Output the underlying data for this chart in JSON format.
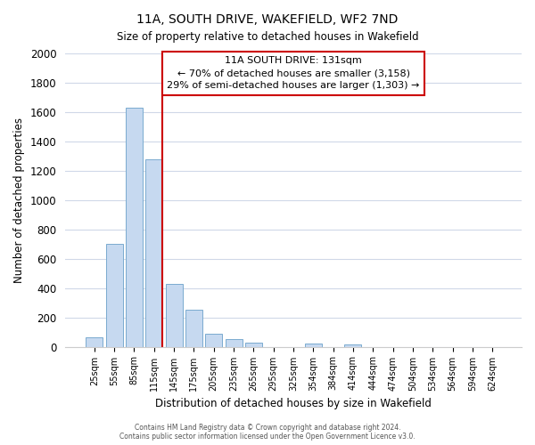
{
  "title": "11A, SOUTH DRIVE, WAKEFIELD, WF2 7ND",
  "subtitle": "Size of property relative to detached houses in Wakefield",
  "xlabel": "Distribution of detached houses by size in Wakefield",
  "ylabel": "Number of detached properties",
  "bar_labels": [
    "25sqm",
    "55sqm",
    "85sqm",
    "115sqm",
    "145sqm",
    "175sqm",
    "205sqm",
    "235sqm",
    "265sqm",
    "295sqm",
    "325sqm",
    "354sqm",
    "384sqm",
    "414sqm",
    "444sqm",
    "474sqm",
    "504sqm",
    "534sqm",
    "564sqm",
    "594sqm",
    "624sqm"
  ],
  "bar_values": [
    65,
    700,
    1630,
    1280,
    430,
    250,
    90,
    52,
    30,
    0,
    0,
    20,
    0,
    15,
    0,
    0,
    0,
    0,
    0,
    0,
    0
  ],
  "bar_color": "#c6d9f0",
  "bar_edge_color": "#7aabcf",
  "annotation_line1": "11A SOUTH DRIVE: 131sqm",
  "annotation_line2": "← 70% of detached houses are smaller (3,158)",
  "annotation_line3": "29% of semi-detached houses are larger (1,303) →",
  "vline_color": "#cc0000",
  "vline_position": 3.43,
  "ylim": [
    0,
    2000
  ],
  "yticks": [
    0,
    200,
    400,
    600,
    800,
    1000,
    1200,
    1400,
    1600,
    1800,
    2000
  ],
  "annotation_box_color": "#cc0000",
  "background_color": "#ffffff",
  "grid_color": "#d0d8e8",
  "footer_text": "Contains HM Land Registry data © Crown copyright and database right 2024.\nContains public sector information licensed under the Open Government Licence v3.0."
}
